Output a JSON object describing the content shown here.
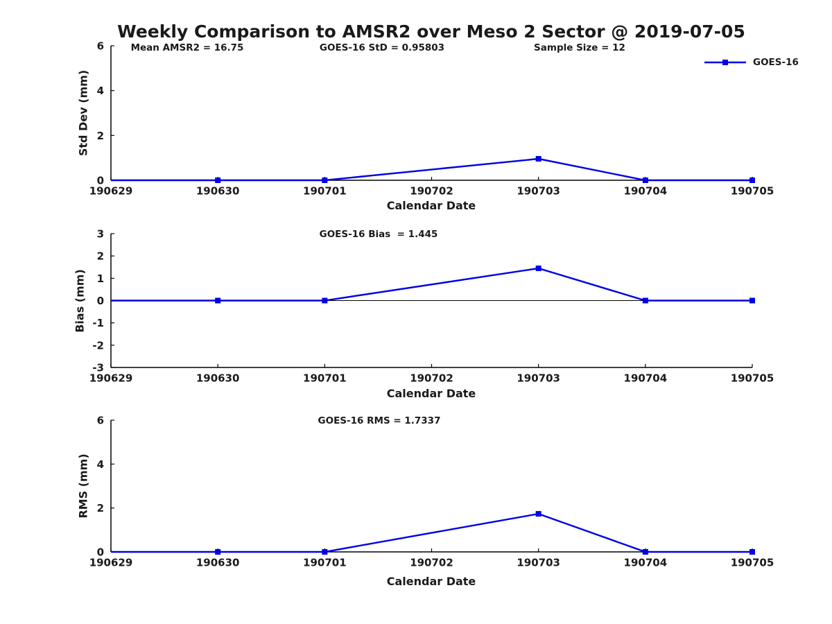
{
  "title": "Weekly Comparison to AMSR2 over Meso 2 Sector @ 2019-07-05",
  "colors": {
    "line": "#0000E6",
    "text": "#1a1a1a",
    "axis": "#000000"
  },
  "chart_data": [
    {
      "type": "line",
      "ylabel": "Std Dev (mm)",
      "xlabel": "Calendar Date",
      "annotations": [
        "Mean AMSR2 = 16.75",
        "GOES-16 StD = 0.95803",
        "Sample Size = 12"
      ],
      "ylim": [
        0,
        6
      ],
      "yticks": [
        0,
        2,
        4,
        6
      ],
      "x": [
        "190629",
        "190630",
        "190701",
        "190702",
        "190703",
        "190704",
        "190705"
      ],
      "legend_position": "top-right",
      "grid": false,
      "series": [
        {
          "name": "GOES-16",
          "points": [
            {
              "x": "190629",
              "y": 0,
              "marker": false
            },
            {
              "x": "190630",
              "y": 0,
              "marker": true
            },
            {
              "x": "190701",
              "y": 0,
              "marker": true
            },
            {
              "x": "190703",
              "y": 0.95803,
              "marker": true
            },
            {
              "x": "190704",
              "y": 0,
              "marker": true
            },
            {
              "x": "190705",
              "y": 0,
              "marker": true
            }
          ]
        }
      ]
    },
    {
      "type": "line",
      "ylabel": "Bias (mm)",
      "xlabel": "Calendar Date",
      "annotations": [
        "GOES-16 Bias  = 1.445"
      ],
      "ylim": [
        -3,
        3
      ],
      "yticks": [
        -3,
        -2,
        -1,
        0,
        1,
        2,
        3
      ],
      "zero_line": true,
      "x": [
        "190629",
        "190630",
        "190701",
        "190702",
        "190703",
        "190704",
        "190705"
      ],
      "grid": false,
      "series": [
        {
          "name": "GOES-16",
          "points": [
            {
              "x": "190629",
              "y": 0,
              "marker": false
            },
            {
              "x": "190630",
              "y": 0,
              "marker": true
            },
            {
              "x": "190701",
              "y": 0,
              "marker": true
            },
            {
              "x": "190703",
              "y": 1.445,
              "marker": true
            },
            {
              "x": "190704",
              "y": 0,
              "marker": true
            },
            {
              "x": "190705",
              "y": 0,
              "marker": true
            }
          ]
        }
      ]
    },
    {
      "type": "line",
      "ylabel": "RMS (mm)",
      "xlabel": "Calendar Date",
      "annotations": [
        "GOES-16 RMS = 1.7337"
      ],
      "ylim": [
        0,
        6
      ],
      "yticks": [
        0,
        2,
        4,
        6
      ],
      "x": [
        "190629",
        "190630",
        "190701",
        "190702",
        "190703",
        "190704",
        "190705"
      ],
      "grid": false,
      "series": [
        {
          "name": "GOES-16",
          "points": [
            {
              "x": "190629",
              "y": 0,
              "marker": false
            },
            {
              "x": "190630",
              "y": 0,
              "marker": true
            },
            {
              "x": "190701",
              "y": 0,
              "marker": true
            },
            {
              "x": "190703",
              "y": 1.7337,
              "marker": true
            },
            {
              "x": "190704",
              "y": 0,
              "marker": true
            },
            {
              "x": "190705",
              "y": 0,
              "marker": true
            }
          ]
        }
      ]
    }
  ]
}
